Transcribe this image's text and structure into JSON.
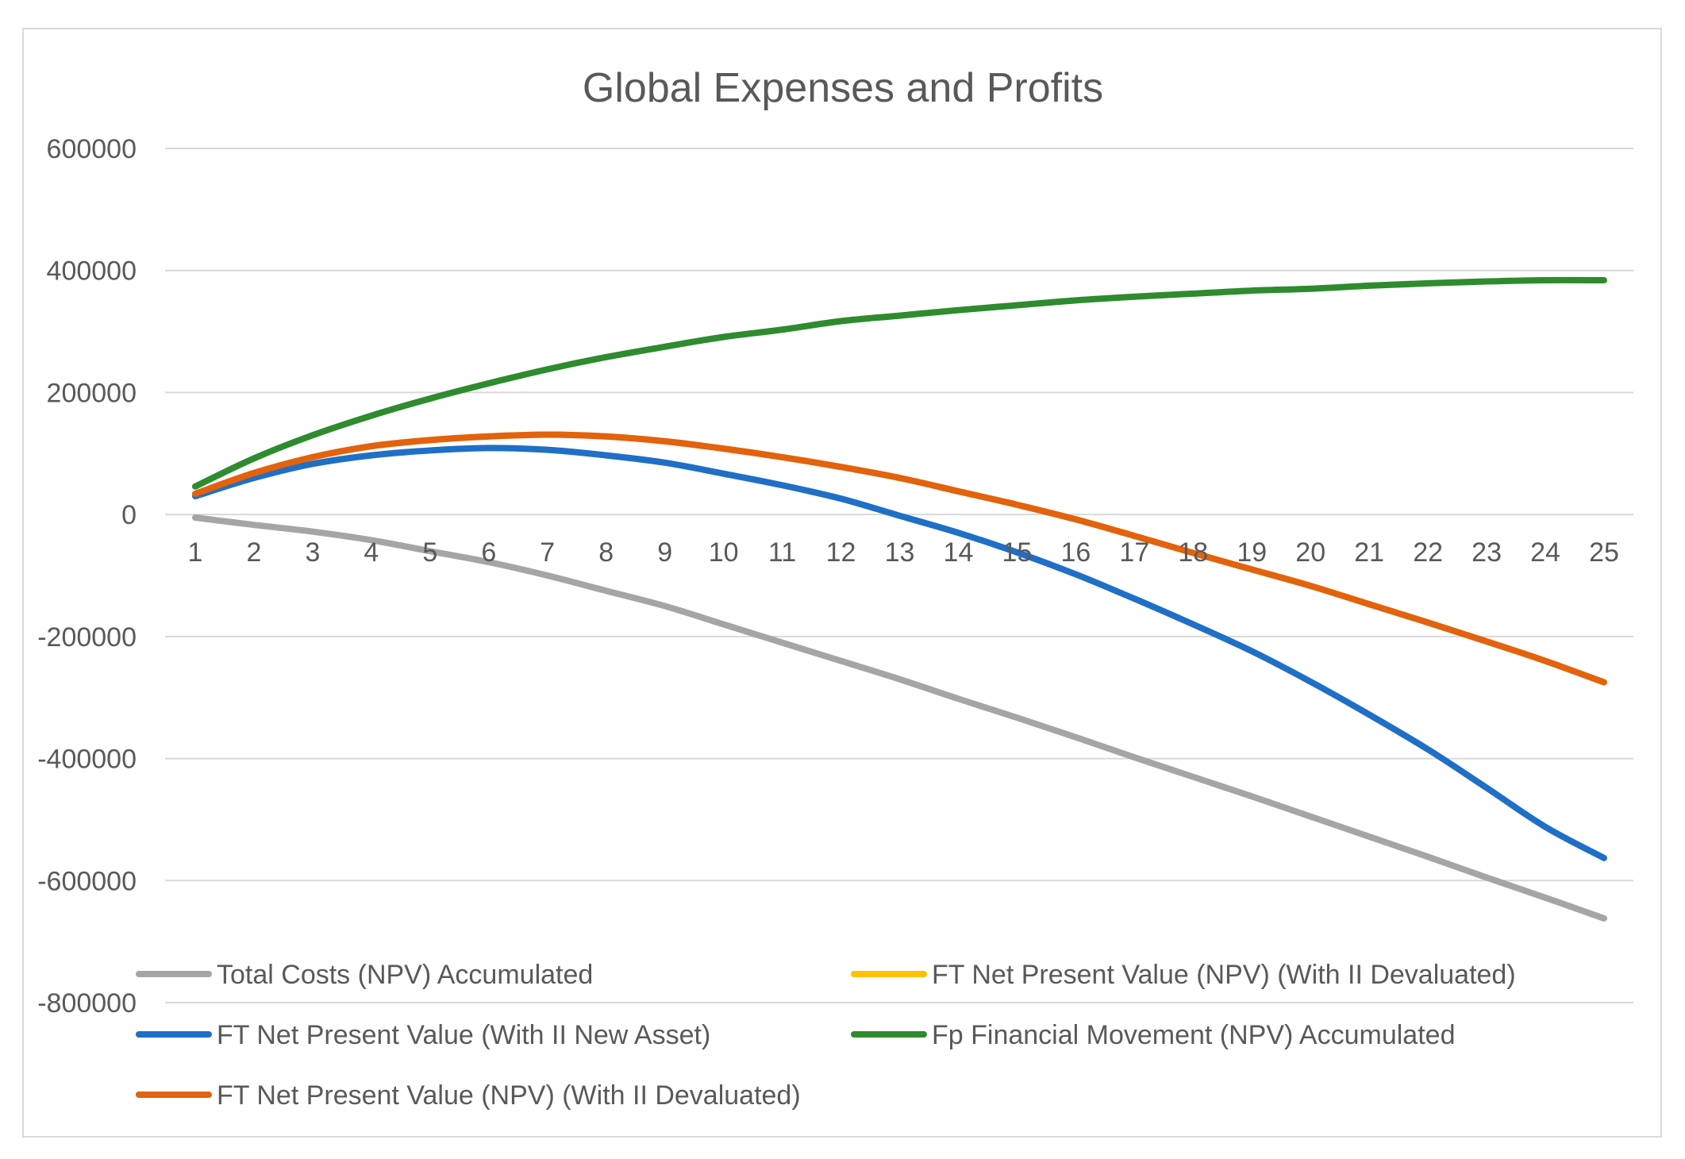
{
  "chart_data": {
    "type": "line",
    "title": "Global Expenses and Profits",
    "xlabel": "",
    "ylabel": "",
    "categories": [
      "1",
      "2",
      "3",
      "4",
      "5",
      "6",
      "7",
      "8",
      "9",
      "10",
      "11",
      "12",
      "13",
      "14",
      "15",
      "16",
      "17",
      "18",
      "19",
      "20",
      "21",
      "22",
      "23",
      "24",
      "25"
    ],
    "ylim": [
      -800000,
      600000
    ],
    "yticks": [
      600000,
      400000,
      200000,
      0,
      -200000,
      -400000,
      -600000,
      -800000
    ],
    "grid": true,
    "legend_position": "bottom",
    "series": [
      {
        "name": "Total Costs (NPV) Accumulated",
        "color": "#a5a5a5",
        "values": [
          -5000,
          -17000,
          -28000,
          -42000,
          -60000,
          -78000,
          -100000,
          -125000,
          -150000,
          -180000,
          -210000,
          -240000,
          -270000,
          -302000,
          -333000,
          -365000,
          -398000,
          -430000,
          -462000,
          -495000,
          -528000,
          -561000,
          -595000,
          -628000,
          -662000
        ]
      },
      {
        "name": "FT Net Present Value (NPV) (With II Devaluated)",
        "color": "#ffc000",
        "values": [
          34000,
          68000,
          94000,
          112000,
          122000,
          128000,
          131000,
          128000,
          120000,
          108000,
          94000,
          78000,
          60000,
          38000,
          16000,
          -8000,
          -35000,
          -63000,
          -90000,
          -117000,
          -147000,
          -177000,
          -208000,
          -240000,
          -275000
        ]
      },
      {
        "name": "FT Net Present Value (With II New Asset)",
        "color": "#1f6fc6",
        "values": [
          30000,
          60000,
          83000,
          97000,
          105000,
          109000,
          106000,
          97000,
          85000,
          67000,
          48000,
          26000,
          -2000,
          -30000,
          -62000,
          -98000,
          -138000,
          -180000,
          -224000,
          -274000,
          -328000,
          -385000,
          -448000,
          -512000,
          -563000
        ]
      },
      {
        "name": "Fp Financial Movement (NPV) Accumulated",
        "color": "#2e8b2e",
        "values": [
          46000,
          92000,
          130000,
          162000,
          190000,
          215000,
          238000,
          258000,
          275000,
          291000,
          303000,
          317000,
          326000,
          335000,
          343000,
          351000,
          357000,
          362000,
          367000,
          370000,
          375000,
          379000,
          382000,
          384000,
          384000
        ]
      },
      {
        "name": "FT Net Present Value (NPV) (With II Devaluated)",
        "color": "#e2620e",
        "values": [
          34000,
          68000,
          94000,
          112000,
          122000,
          128000,
          131000,
          128000,
          120000,
          108000,
          94000,
          78000,
          60000,
          38000,
          16000,
          -8000,
          -35000,
          -63000,
          -90000,
          -117000,
          -147000,
          -177000,
          -208000,
          -240000,
          -275000
        ]
      }
    ]
  }
}
